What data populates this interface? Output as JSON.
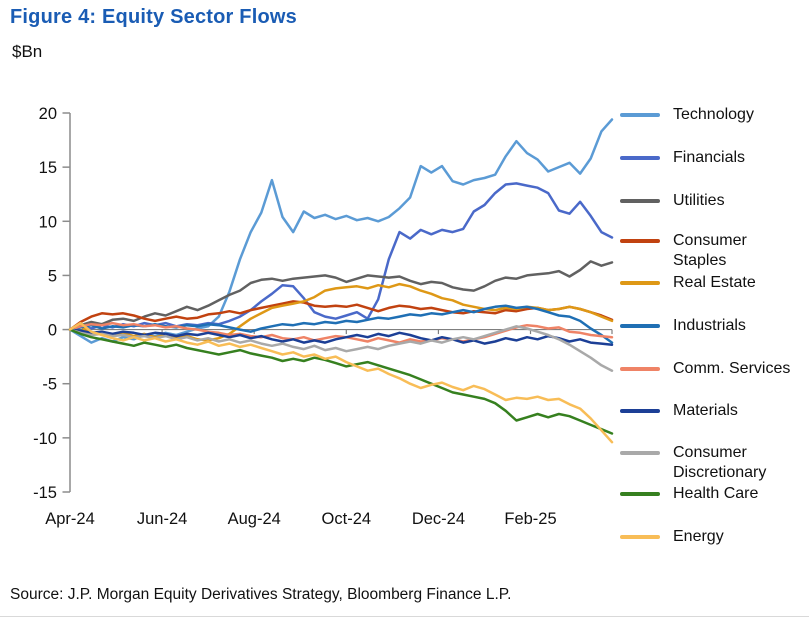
{
  "title": "Figure 4: Equity Sector Flows",
  "units_label": "$Bn",
  "source": "Source: J.P. Morgan Equity Derivatives Strategy, Bloomberg Finance L.P.",
  "colors": {
    "title_blue": "#1A5CB4",
    "axis_gray": "#8c8c8c",
    "zero_line_gray": "#7f7f7f",
    "text": "#111111"
  },
  "chart_data": {
    "type": "line",
    "title": "Figure 4: Equity Sector Flows",
    "ylabel": "$Bn",
    "ylim": [
      -15,
      20
    ],
    "yticks": [
      20,
      15,
      10,
      5,
      0,
      -5,
      -10,
      -15
    ],
    "xtick_labels": [
      "Apr-24",
      "Jun-24",
      "Aug-24",
      "Oct-24",
      "Dec-24",
      "Feb-25"
    ],
    "x_unit": "weekly cumulative flows, Apr-2024 through Mar-2025",
    "grid": false,
    "legend_position": "right",
    "series": [
      {
        "name": "Technology",
        "color": "#5B9BD5",
        "values": [
          0,
          -0.6,
          -1.2,
          -0.8,
          -1.1,
          -0.7,
          -0.9,
          -0.5,
          -0.6,
          -0.3,
          -0.5,
          -0.2,
          0.1,
          0.3,
          1.2,
          3.5,
          6.5,
          9.0,
          10.8,
          13.8,
          10.4,
          9.0,
          10.9,
          10.3,
          10.6,
          10.2,
          10.5,
          10.1,
          10.3,
          10.0,
          10.4,
          11.2,
          12.2,
          15.1,
          14.5,
          15.1,
          13.7,
          13.4,
          13.8,
          14.0,
          14.3,
          16.0,
          17.4,
          16.3,
          15.7,
          14.6,
          15.0,
          15.4,
          14.4,
          15.8,
          18.3,
          19.4
        ]
      },
      {
        "name": "Financials",
        "color": "#4A69C9",
        "values": [
          0,
          0.3,
          0.1,
          0.4,
          0.2,
          0.5,
          0.3,
          0.6,
          0.4,
          0.6,
          0.3,
          0.5,
          0.4,
          0.6,
          0.5,
          0.8,
          1.2,
          1.8,
          2.6,
          3.3,
          4.1,
          4.0,
          2.9,
          1.6,
          1.2,
          1.0,
          1.3,
          1.6,
          1.0,
          2.8,
          6.5,
          9.0,
          8.4,
          9.2,
          8.8,
          9.2,
          9.0,
          9.3,
          10.9,
          11.5,
          12.6,
          13.4,
          13.5,
          13.3,
          13.1,
          12.6,
          11.0,
          10.7,
          11.8,
          10.5,
          9.0,
          8.5
        ]
      },
      {
        "name": "Utilities",
        "color": "#616161",
        "values": [
          0,
          0.4,
          0.7,
          0.5,
          0.9,
          1.0,
          0.8,
          1.2,
          1.5,
          1.3,
          1.7,
          2.1,
          1.8,
          2.2,
          2.7,
          3.2,
          3.6,
          4.3,
          4.6,
          4.7,
          4.5,
          4.7,
          4.8,
          4.9,
          5.0,
          4.8,
          4.4,
          4.7,
          5.0,
          4.9,
          4.8,
          4.9,
          4.5,
          4.2,
          4.4,
          4.3,
          3.9,
          3.7,
          3.6,
          4.0,
          4.5,
          4.8,
          4.7,
          5.0,
          5.1,
          5.2,
          5.4,
          4.9,
          5.5,
          6.3,
          5.9,
          6.2
        ]
      },
      {
        "name": "Consumer Staples",
        "color": "#C14210",
        "values": [
          0,
          0.7,
          1.2,
          1.5,
          1.4,
          1.5,
          1.3,
          1.0,
          0.8,
          1.0,
          1.2,
          1.0,
          1.1,
          1.4,
          1.5,
          1.7,
          1.5,
          1.8,
          2.0,
          2.2,
          2.4,
          2.6,
          2.5,
          2.2,
          2.1,
          2.2,
          2.1,
          2.3,
          2.0,
          1.7,
          2.0,
          2.2,
          2.1,
          1.9,
          2.0,
          1.8,
          1.6,
          1.5,
          1.7,
          1.6,
          1.5,
          1.8,
          1.7,
          1.9,
          2.0,
          1.8,
          1.9,
          2.1,
          1.9,
          1.6,
          1.3,
          0.9
        ]
      },
      {
        "name": "Real Estate",
        "color": "#DE9816",
        "values": [
          0,
          0.3,
          -0.4,
          -0.2,
          -0.5,
          -0.3,
          -0.6,
          -0.4,
          -0.7,
          -0.5,
          -0.8,
          -0.6,
          -0.9,
          -1.0,
          -0.8,
          -0.4,
          0.3,
          1.0,
          1.5,
          2.0,
          2.2,
          2.4,
          2.6,
          3.0,
          3.6,
          3.8,
          3.9,
          4.0,
          3.8,
          4.1,
          3.9,
          4.2,
          4.0,
          3.6,
          3.3,
          2.9,
          2.7,
          2.3,
          2.1,
          1.9,
          1.8,
          2.0,
          1.9,
          2.1,
          2.0,
          1.8,
          1.9,
          2.1,
          1.9,
          1.6,
          1.2,
          0.8
        ]
      },
      {
        "name": "Industrials",
        "color": "#1F6FB4",
        "values": [
          0,
          0.2,
          0.4,
          0.1,
          0.3,
          0.2,
          0.4,
          0.3,
          0.5,
          0.3,
          0.2,
          0.4,
          0.3,
          0.5,
          0.4,
          0.2,
          0.0,
          -0.2,
          0.1,
          0.3,
          0.5,
          0.4,
          0.6,
          0.5,
          0.7,
          0.6,
          0.8,
          0.7,
          0.9,
          1.1,
          1.0,
          1.2,
          1.4,
          1.3,
          1.5,
          1.4,
          1.6,
          1.8,
          1.6,
          1.9,
          2.1,
          2.2,
          2.0,
          2.1,
          1.9,
          1.6,
          1.3,
          1.2,
          0.8,
          0.1,
          -0.5,
          -1.2
        ]
      },
      {
        "name": "Comm. Services",
        "color": "#EF8366",
        "values": [
          0,
          0.3,
          0.5,
          0.4,
          0.6,
          0.4,
          0.5,
          0.3,
          0.4,
          0.2,
          0.3,
          0.1,
          0.0,
          -0.2,
          -0.3,
          -0.5,
          -0.4,
          -0.6,
          -0.7,
          -0.5,
          -0.8,
          -0.9,
          -0.7,
          -1.0,
          -0.8,
          -0.6,
          -0.7,
          -0.9,
          -1.1,
          -0.8,
          -1.0,
          -1.2,
          -0.9,
          -1.1,
          -1.0,
          -0.8,
          -0.9,
          -1.1,
          -0.9,
          -0.7,
          -0.4,
          -0.1,
          0.2,
          0.4,
          0.3,
          0.1,
          0.2,
          -0.2,
          -0.3,
          -0.5,
          -0.6,
          -0.7
        ]
      },
      {
        "name": "Materials",
        "color": "#1C3F96",
        "values": [
          0,
          -0.1,
          -0.3,
          -0.2,
          -0.4,
          -0.2,
          -0.3,
          -0.5,
          -0.3,
          -0.4,
          -0.6,
          -0.4,
          -0.5,
          -0.3,
          -0.5,
          -0.7,
          -0.5,
          -0.8,
          -0.6,
          -0.9,
          -1.1,
          -0.9,
          -1.2,
          -1.0,
          -1.2,
          -0.9,
          -0.7,
          -0.5,
          -0.7,
          -0.4,
          -0.6,
          -0.3,
          -0.5,
          -0.8,
          -1.0,
          -0.7,
          -0.9,
          -1.2,
          -1.0,
          -1.3,
          -1.1,
          -0.8,
          -1.0,
          -0.7,
          -0.9,
          -0.6,
          -0.8,
          -1.1,
          -0.9,
          -1.2,
          -1.3,
          -1.4
        ]
      },
      {
        "name": "Consumer Discretionary",
        "color": "#A9A9A9",
        "values": [
          0,
          -0.3,
          -0.5,
          -0.4,
          -0.6,
          -0.5,
          -0.7,
          -0.6,
          -0.8,
          -0.6,
          -0.9,
          -0.7,
          -1.0,
          -0.8,
          -1.1,
          -0.9,
          -1.2,
          -1.0,
          -1.3,
          -1.5,
          -1.3,
          -1.6,
          -1.8,
          -1.5,
          -1.9,
          -1.7,
          -2.0,
          -1.8,
          -1.6,
          -1.8,
          -1.5,
          -1.3,
          -1.1,
          -1.3,
          -1.0,
          -1.2,
          -0.9,
          -0.7,
          -0.9,
          -0.6,
          -0.3,
          0.0,
          0.3,
          0.1,
          -0.2,
          -0.5,
          -0.9,
          -1.4,
          -2.0,
          -2.6,
          -3.3,
          -3.8
        ]
      },
      {
        "name": "Health Care",
        "color": "#36801F",
        "values": [
          0,
          -0.4,
          -0.7,
          -0.9,
          -1.1,
          -1.3,
          -1.5,
          -1.2,
          -1.4,
          -1.6,
          -1.4,
          -1.7,
          -1.9,
          -2.1,
          -2.3,
          -2.1,
          -1.9,
          -2.2,
          -2.4,
          -2.6,
          -2.9,
          -2.7,
          -2.9,
          -2.6,
          -2.8,
          -3.1,
          -3.4,
          -3.2,
          -3.0,
          -3.3,
          -3.6,
          -3.9,
          -4.2,
          -4.6,
          -5.0,
          -5.4,
          -5.8,
          -6.0,
          -6.2,
          -6.4,
          -6.8,
          -7.5,
          -8.4,
          -8.1,
          -7.8,
          -8.1,
          -7.8,
          -8.0,
          -8.4,
          -8.8,
          -9.2,
          -9.6
        ]
      },
      {
        "name": "Energy",
        "color": "#F8BD57",
        "values": [
          0,
          0.6,
          -0.2,
          -0.5,
          -0.8,
          -1.0,
          -0.7,
          -1.0,
          -0.8,
          -1.1,
          -0.9,
          -1.2,
          -1.4,
          -1.1,
          -1.5,
          -1.3,
          -1.6,
          -1.4,
          -1.7,
          -2.0,
          -2.3,
          -2.1,
          -2.5,
          -2.3,
          -2.7,
          -2.5,
          -3.0,
          -3.4,
          -3.8,
          -3.6,
          -4.1,
          -4.5,
          -5.0,
          -5.4,
          -5.1,
          -4.9,
          -5.3,
          -5.6,
          -5.2,
          -5.5,
          -6.0,
          -6.5,
          -6.3,
          -6.4,
          -6.2,
          -6.5,
          -6.4,
          -6.9,
          -7.3,
          -8.2,
          -9.3,
          -10.4
        ]
      }
    ]
  }
}
